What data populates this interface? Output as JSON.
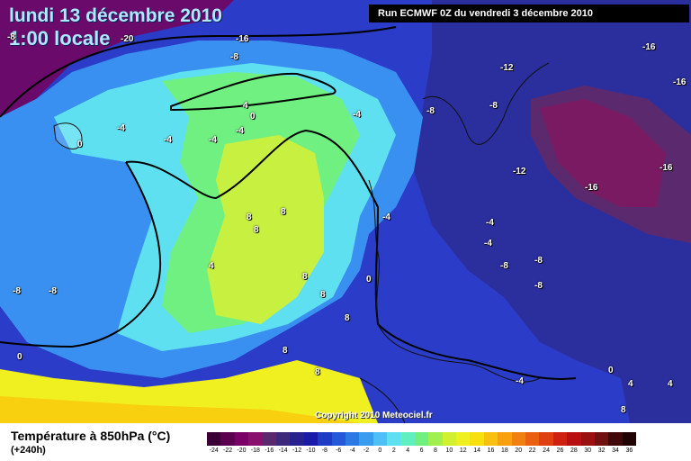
{
  "header": {
    "date": "lundi 13 décembre 2010",
    "time": "1:00 locale",
    "run_info": "Run ECMWF 0Z du vendredi 3 décembre 2010"
  },
  "copyright": "Copyright 2010 Meteociel.fr",
  "legend": {
    "title": "Température à 850hPa (°C)",
    "lead_time": "(+240h)",
    "scale": [
      {
        "value": "-24",
        "color": "#3a0035"
      },
      {
        "value": "-22",
        "color": "#5a004f"
      },
      {
        "value": "-20",
        "color": "#7a0068"
      },
      {
        "value": "-18",
        "color": "#8a1070"
      },
      {
        "value": "-16",
        "color": "#5b2a6e"
      },
      {
        "value": "-14",
        "color": "#3c2a7a"
      },
      {
        "value": "-12",
        "color": "#26228f"
      },
      {
        "value": "-10",
        "color": "#1a1aa8"
      },
      {
        "value": "-8",
        "color": "#1f3ac4"
      },
      {
        "value": "-6",
        "color": "#2458d8"
      },
      {
        "value": "-4",
        "color": "#2c79e6"
      },
      {
        "value": "-2",
        "color": "#3a9cf0"
      },
      {
        "value": "0",
        "color": "#4ec0f5"
      },
      {
        "value": "2",
        "color": "#5fe0f0"
      },
      {
        "value": "4",
        "color": "#60f0c0"
      },
      {
        "value": "6",
        "color": "#70f080"
      },
      {
        "value": "8",
        "color": "#a0f050"
      },
      {
        "value": "10",
        "color": "#d0f030"
      },
      {
        "value": "12",
        "color": "#f0f020"
      },
      {
        "value": "14",
        "color": "#f8e010"
      },
      {
        "value": "16",
        "color": "#f8c010"
      },
      {
        "value": "18",
        "color": "#f8a010"
      },
      {
        "value": "20",
        "color": "#f08010"
      },
      {
        "value": "22",
        "color": "#e86010"
      },
      {
        "value": "24",
        "color": "#e04010"
      },
      {
        "value": "26",
        "color": "#d02010"
      },
      {
        "value": "28",
        "color": "#b81010"
      },
      {
        "value": "30",
        "color": "#981010"
      },
      {
        "value": "32",
        "color": "#701010"
      },
      {
        "value": "34",
        "color": "#400808"
      },
      {
        "value": "36",
        "color": "#200404"
      }
    ]
  },
  "isotherm_labels": [
    {
      "text": "-16"
    },
    {
      "text": "-20"
    },
    {
      "text": "-8"
    },
    {
      "text": "-8"
    },
    {
      "text": "-16"
    },
    {
      "text": "-16"
    },
    {
      "text": "-12"
    },
    {
      "text": "-8"
    },
    {
      "text": "-8"
    },
    {
      "text": "-4"
    },
    {
      "text": "4"
    },
    {
      "text": "0"
    },
    {
      "text": "-4"
    },
    {
      "text": "-4"
    },
    {
      "text": "-4"
    },
    {
      "text": "-4"
    },
    {
      "text": "0"
    },
    {
      "text": "-12"
    },
    {
      "text": "-16"
    },
    {
      "text": "-16"
    },
    {
      "text": "8"
    },
    {
      "text": "8"
    },
    {
      "text": "8"
    },
    {
      "text": "-4"
    },
    {
      "text": "-4"
    },
    {
      "text": "-4"
    },
    {
      "text": "-8"
    },
    {
      "text": "-8"
    },
    {
      "text": "-8"
    },
    {
      "text": "4"
    },
    {
      "text": "-8"
    },
    {
      "text": "-8"
    },
    {
      "text": "8"
    },
    {
      "text": "8"
    },
    {
      "text": "0"
    },
    {
      "text": "8"
    },
    {
      "text": "0"
    },
    {
      "text": "8"
    },
    {
      "text": "8"
    },
    {
      "text": "-4"
    },
    {
      "text": "0"
    },
    {
      "text": "4"
    },
    {
      "text": "4"
    },
    {
      "text": "8"
    }
  ]
}
